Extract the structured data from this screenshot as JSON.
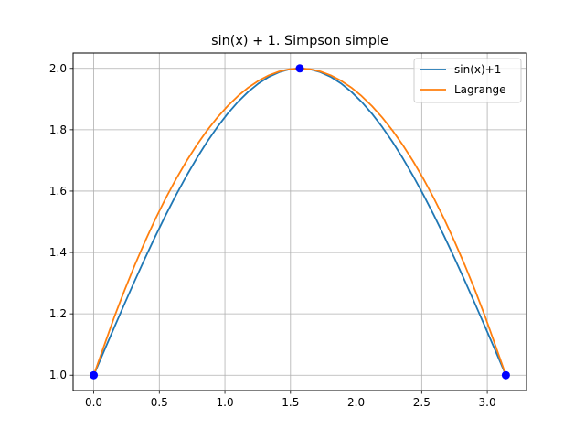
{
  "chart_data": {
    "type": "line",
    "title": "sin(x) + 1. Simpson simple",
    "xlabel": "",
    "ylabel": "",
    "xlim": [
      -0.157,
      3.299
    ],
    "ylim": [
      0.95,
      2.05
    ],
    "xticks": [
      0.0,
      0.5,
      1.0,
      1.5,
      2.0,
      2.5,
      3.0
    ],
    "yticks": [
      1.0,
      1.2,
      1.4,
      1.6,
      1.8,
      2.0
    ],
    "xtick_labels": [
      "0.0",
      "0.5",
      "1.0",
      "1.5",
      "2.0",
      "2.5",
      "3.0"
    ],
    "ytick_labels": [
      "1.0",
      "1.2",
      "1.4",
      "1.6",
      "1.8",
      "2.0"
    ],
    "grid": true,
    "legend_position": "top-right",
    "series": [
      {
        "name": "sin(x)+1",
        "color": "#1f77b4",
        "x": [
          0.0,
          0.0785,
          0.1571,
          0.2356,
          0.3142,
          0.3927,
          0.4712,
          0.5498,
          0.6283,
          0.7069,
          0.7854,
          0.8639,
          0.9425,
          1.021,
          1.0996,
          1.1781,
          1.2566,
          1.3352,
          1.4137,
          1.4923,
          1.5708,
          1.6493,
          1.7279,
          1.8064,
          1.885,
          1.9635,
          2.042,
          2.1206,
          2.1991,
          2.2777,
          2.3562,
          2.4347,
          2.5133,
          2.5918,
          2.6704,
          2.7489,
          2.8274,
          2.906,
          2.9845,
          3.0631,
          3.1416
        ],
        "y": [
          1.0,
          1.0785,
          1.1564,
          1.2334,
          1.309,
          1.3827,
          1.454,
          1.5225,
          1.5878,
          1.6494,
          1.7071,
          1.7604,
          1.809,
          1.8526,
          1.891,
          1.9239,
          1.9511,
          1.9724,
          1.9877,
          1.9969,
          2.0,
          1.9969,
          1.9877,
          1.9724,
          1.9511,
          1.9239,
          1.891,
          1.8526,
          1.809,
          1.7604,
          1.7071,
          1.6494,
          1.5878,
          1.5225,
          1.454,
          1.3827,
          1.309,
          1.2334,
          1.1564,
          1.0785,
          1.0
        ]
      },
      {
        "name": "Lagrange",
        "color": "#ff7f0e",
        "x": [
          0.0,
          0.0785,
          0.1571,
          0.2356,
          0.3142,
          0.3927,
          0.4712,
          0.5498,
          0.6283,
          0.7069,
          0.7854,
          0.8639,
          0.9425,
          1.021,
          1.0996,
          1.1781,
          1.2566,
          1.3352,
          1.4137,
          1.4923,
          1.5708,
          1.6493,
          1.7279,
          1.8064,
          1.885,
          1.9635,
          2.042,
          2.1206,
          2.1991,
          2.2777,
          2.3562,
          2.4347,
          2.5133,
          2.5918,
          2.6704,
          2.7489,
          2.8274,
          2.906,
          2.9845,
          3.0631,
          3.1416
        ],
        "y": [
          1.0,
          1.095,
          1.19,
          1.2775,
          1.36,
          1.4375,
          1.51,
          1.5775,
          1.64,
          1.6975,
          1.75,
          1.7975,
          1.84,
          1.8775,
          1.91,
          1.9375,
          1.96,
          1.9775,
          1.99,
          1.9975,
          2.0,
          1.9975,
          1.99,
          1.9775,
          1.96,
          1.9375,
          1.91,
          1.8775,
          1.84,
          1.7975,
          1.75,
          1.6975,
          1.64,
          1.5775,
          1.51,
          1.4375,
          1.36,
          1.2775,
          1.19,
          1.095,
          1.0
        ]
      }
    ],
    "points": {
      "color": "#0000ff",
      "x": [
        0.0,
        1.5708,
        3.1416
      ],
      "y": [
        1.0,
        2.0,
        1.0
      ]
    }
  }
}
